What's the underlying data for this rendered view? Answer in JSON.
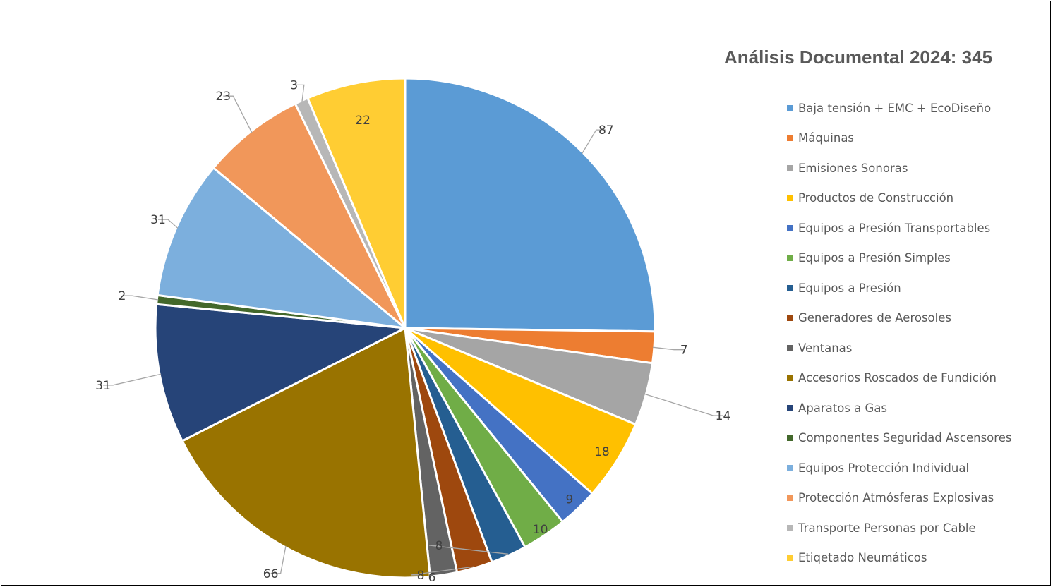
{
  "chart_data": {
    "type": "pie",
    "title": "Análisis Documental 2024: 345",
    "total": 345,
    "legend_position": "right",
    "slices": [
      {
        "label": "Baja tensión + EMC + EcoDiseño",
        "value": 87,
        "color": "#5B9BD5"
      },
      {
        "label": "Máquinas",
        "value": 7,
        "color": "#ED7D31"
      },
      {
        "label": "Emisiones Sonoras",
        "value": 14,
        "color": "#A5A5A5"
      },
      {
        "label": "Productos de Construcción",
        "value": 18,
        "color": "#FFC000"
      },
      {
        "label": "Equipos a Presión Transportables",
        "value": 9,
        "color": "#4472C4"
      },
      {
        "label": "Equipos a Presión Simples",
        "value": 10,
        "color": "#70AD47"
      },
      {
        "label": "Equipos a Presión",
        "value": 8,
        "color": "#255E91"
      },
      {
        "label": "Generadores de Aerosoles",
        "value": 8,
        "color": "#9E480E"
      },
      {
        "label": "Ventanas",
        "value": 6,
        "color": "#636363"
      },
      {
        "label": "Accesorios Roscados de Fundición",
        "value": 66,
        "color": "#997300"
      },
      {
        "label": "Aparatos a Gas",
        "value": 31,
        "color": "#264478"
      },
      {
        "label": "Componentes Seguridad Ascensores",
        "value": 2,
        "color": "#43682B"
      },
      {
        "label": "Equipos Protección Individual",
        "value": 31,
        "color": "#7CAFDD"
      },
      {
        "label": "Protección Atmósferas Explosivas",
        "value": 23,
        "color": "#F1975A"
      },
      {
        "label": "Transporte Personas por Cable",
        "value": 3,
        "color": "#B7B7B7"
      },
      {
        "label": "Etiqetado Neumáticos",
        "value": 22,
        "color": "#FFCD33"
      }
    ]
  }
}
